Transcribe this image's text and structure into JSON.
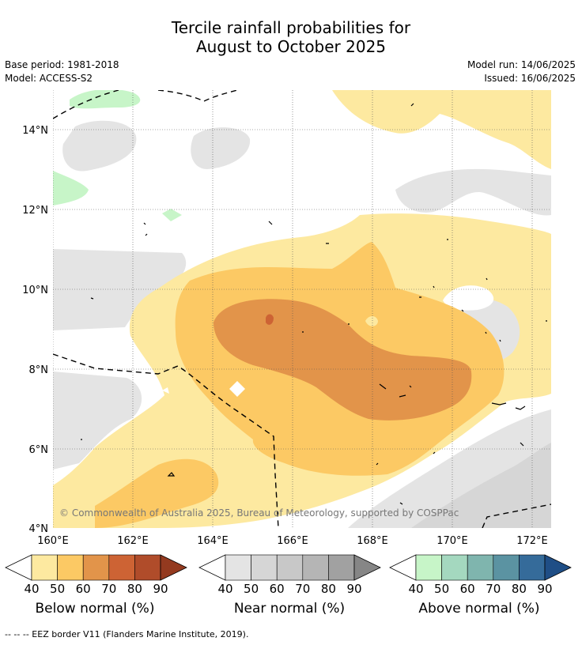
{
  "title": {
    "line1": "Tercile rainfall probabilities for",
    "line2": "August to October 2025"
  },
  "meta": {
    "base_period": "Base period: 1981-2018",
    "model": "Model: ACCESS-S2",
    "model_run": "Model run: 14/06/2025",
    "issued": "Issued: 16/06/2025"
  },
  "map": {
    "copyright": "© Commonwealth of Australia 2025, Bureau of Meteorology, supported by COSPPac",
    "lat_labels": [
      "14°N",
      "12°N",
      "10°N",
      "8°N",
      "6°N",
      "4°N"
    ],
    "lon_labels": [
      "160°E",
      "162°E",
      "164°E",
      "166°E",
      "168°E",
      "170°E",
      "172°E"
    ],
    "grid": true
  },
  "colorbars": [
    {
      "name": "Below normal (%)",
      "ticks": [
        "40",
        "50",
        "60",
        "70",
        "80",
        "90"
      ],
      "colors": [
        "#fde9a0",
        "#fcc964",
        "#e2944a",
        "#cd6334",
        "#b04c2a",
        "#943a1f"
      ]
    },
    {
      "name": "Near normal (%)",
      "ticks": [
        "40",
        "50",
        "60",
        "70",
        "80",
        "90"
      ],
      "colors": [
        "#e4e4e4",
        "#d6d6d6",
        "#c8c8c8",
        "#b5b5b5",
        "#a1a1a1",
        "#868686"
      ]
    },
    {
      "name": "Above normal (%)",
      "ticks": [
        "40",
        "50",
        "60",
        "70",
        "80",
        "90"
      ],
      "colors": [
        "#c7f5c8",
        "#a4d8bf",
        "#7fb5ae",
        "#5b93a2",
        "#356b9a",
        "#1f4e86"
      ]
    }
  ],
  "footer": "--  --  -- EEZ border V11 (Flanders Marine Institute, 2019)."
}
